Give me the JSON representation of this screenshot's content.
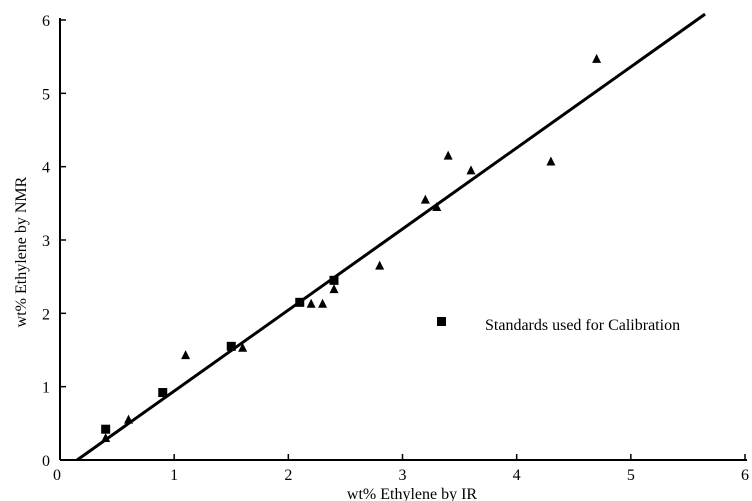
{
  "chart_data": {
    "type": "scatter",
    "xlabel": "wt% Ethylene by IR",
    "ylabel": "wt% Ethylene by NMR",
    "xlim": [
      0,
      6
    ],
    "ylim": [
      0,
      6
    ],
    "xticks": [
      0,
      1,
      2,
      3,
      4,
      5,
      6
    ],
    "yticks": [
      0,
      1,
      2,
      3,
      4,
      5,
      6
    ],
    "grid": false,
    "legend_position": "right-center",
    "series": [
      {
        "marker": "triangle",
        "x": [
          0.4,
          0.6,
          1.1,
          1.6,
          2.2,
          2.3,
          2.4,
          2.8,
          3.2,
          3.3,
          3.4,
          3.6,
          4.3,
          4.7
        ],
        "y": [
          0.3,
          0.55,
          1.43,
          1.53,
          2.13,
          2.13,
          2.33,
          2.65,
          3.55,
          3.45,
          4.15,
          3.95,
          4.07,
          5.47
        ]
      },
      {
        "name": "Standards used for Calibration",
        "marker": "square",
        "x": [
          0.4,
          0.9,
          1.5,
          2.1,
          2.4
        ],
        "y": [
          0.42,
          0.92,
          1.55,
          2.15,
          2.45
        ]
      }
    ],
    "fit_line": {
      "x": [
        0.15,
        5.65
      ],
      "y": [
        0.0,
        6.08
      ]
    },
    "colors": {
      "ink": "#000000",
      "background": "#ffffff"
    }
  }
}
